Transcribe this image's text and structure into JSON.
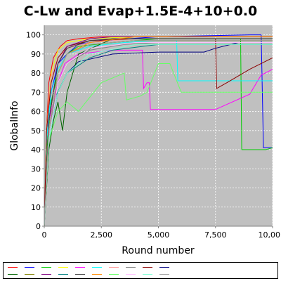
{
  "chart_data": {
    "type": "line",
    "title": "C-Lw and Evap+1.5E-4+10+0.0",
    "xlabel": "Round number",
    "ylabel": "GlobalInfo",
    "xlim": [
      0,
      10000
    ],
    "ylim": [
      0,
      105
    ],
    "x_ticks": [
      "0",
      "2,500",
      "5,000",
      "7,500",
      "10,00"
    ],
    "y_ticks": [
      "0",
      "10",
      "20",
      "30",
      "40",
      "50",
      "60",
      "70",
      "80",
      "90",
      "100"
    ],
    "grid": true,
    "plot_background": "#c0c0c0",
    "legend_placement": "bottom",
    "series": [
      {
        "color": "#ff0000",
        "x": [
          0,
          100,
          200,
          400,
          700,
          1000,
          1500,
          2500,
          4000,
          10000
        ],
        "y": [
          0,
          50,
          75,
          88,
          94,
          97,
          98,
          99,
          99,
          99
        ]
      },
      {
        "color": "#0000ff",
        "x": [
          0,
          100,
          300,
          600,
          1000,
          1500,
          2500,
          5000,
          9000,
          9500,
          9600,
          10000
        ],
        "y": [
          0,
          45,
          70,
          85,
          90,
          95,
          97,
          99,
          100,
          100,
          41,
          41
        ]
      },
      {
        "color": "#00cc00",
        "x": [
          0,
          100,
          300,
          600,
          1000,
          1500,
          3000,
          5000,
          8600,
          8650,
          9700,
          10000
        ],
        "y": [
          0,
          40,
          65,
          80,
          90,
          94,
          96,
          98,
          98,
          40,
          40,
          41
        ]
      },
      {
        "color": "#ffff00",
        "x": [
          0,
          100,
          300,
          600,
          1000,
          2000,
          4000,
          10000
        ],
        "y": [
          0,
          50,
          80,
          92,
          96,
          98,
          99,
          99
        ]
      },
      {
        "color": "#ff00ff",
        "x": [
          0,
          200,
          600,
          900,
          1500,
          3000,
          4300,
          4350,
          4500,
          4600,
          4650,
          7500,
          9000,
          9500,
          10000
        ],
        "y": [
          0,
          55,
          75,
          85,
          90,
          92,
          92,
          72,
          75,
          75,
          61,
          61,
          69,
          79,
          82
        ]
      },
      {
        "color": "#00ffff",
        "x": [
          0,
          100,
          300,
          600,
          1000,
          2000,
          3500,
          5000,
          5800,
          5850,
          10000
        ],
        "y": [
          0,
          45,
          70,
          82,
          90,
          94,
          96,
          97,
          97,
          76,
          76
        ]
      },
      {
        "color": "#ff9999",
        "x": [
          0,
          100,
          300,
          600,
          1000,
          2000,
          4000,
          10000
        ],
        "y": [
          0,
          50,
          78,
          88,
          93,
          96,
          98,
          98
        ]
      },
      {
        "color": "#808080",
        "x": [
          0,
          200,
          600,
          1000,
          2000,
          3500,
          5000,
          7500,
          10000
        ],
        "y": [
          0,
          50,
          75,
          85,
          92,
          95,
          96,
          96,
          96
        ]
      },
      {
        "color": "#8b0000",
        "x": [
          0,
          100,
          300,
          600,
          1000,
          2000,
          4000,
          7000,
          7500,
          7550,
          8000,
          9000,
          10000
        ],
        "y": [
          0,
          50,
          75,
          88,
          94,
          97,
          98,
          98,
          98,
          72,
          75,
          82,
          88
        ]
      },
      {
        "color": "#000080",
        "x": [
          0,
          200,
          600,
          1000,
          1500,
          3000,
          5000,
          7000,
          7500,
          8500,
          10000
        ],
        "y": [
          0,
          45,
          70,
          80,
          86,
          90,
          91,
          91,
          93,
          96,
          96
        ]
      },
      {
        "color": "#006400",
        "x": [
          0,
          200,
          400,
          600,
          800,
          1000,
          1500,
          3000,
          10000
        ],
        "y": [
          0,
          40,
          55,
          65,
          50,
          70,
          90,
          98,
          98
        ]
      },
      {
        "color": "#808000",
        "x": [
          0,
          200,
          600,
          1000,
          2000,
          4000,
          10000
        ],
        "y": [
          0,
          50,
          80,
          90,
          95,
          97,
          97
        ]
      },
      {
        "color": "#800080",
        "x": [
          0,
          200,
          600,
          1000,
          2000,
          3000,
          10000
        ],
        "y": [
          0,
          55,
          85,
          94,
          98,
          99,
          99
        ]
      },
      {
        "color": "#008080",
        "x": [
          0,
          200,
          500,
          1000,
          2000,
          3000,
          5000,
          10000
        ],
        "y": [
          0,
          45,
          68,
          80,
          88,
          92,
          95,
          95
        ]
      },
      {
        "color": "#404040",
        "x": [
          0,
          200,
          600,
          1000,
          2000,
          3000,
          10000
        ],
        "y": [
          0,
          55,
          85,
          93,
          97,
          98,
          98
        ]
      },
      {
        "color": "#ff8c00",
        "x": [
          0,
          200,
          600,
          1000,
          2000,
          4000,
          10000
        ],
        "y": [
          0,
          50,
          80,
          90,
          96,
          99,
          99
        ]
      },
      {
        "color": "#66ff66",
        "x": [
          0,
          200,
          600,
          1000,
          1500,
          2500,
          3500,
          3600,
          4200,
          4500,
          5000,
          5500,
          6000,
          10000
        ],
        "y": [
          0,
          45,
          60,
          65,
          60,
          75,
          80,
          66,
          68,
          70,
          85,
          85,
          70,
          70
        ]
      },
      {
        "color": "#ffc0ff",
        "x": [
          0,
          200,
          600,
          1000,
          2000,
          4000,
          10000
        ],
        "y": [
          0,
          45,
          75,
          85,
          93,
          96,
          96
        ]
      },
      {
        "color": "#7fffd4",
        "x": [
          0,
          200,
          600,
          1000,
          2000,
          4000,
          10000
        ],
        "y": [
          0,
          45,
          70,
          80,
          90,
          95,
          95
        ]
      },
      {
        "color": "#a0a0a0",
        "x": [
          0,
          200,
          600,
          1000,
          2000,
          4000,
          10000
        ],
        "y": [
          0,
          50,
          80,
          90,
          95,
          97,
          97
        ]
      }
    ]
  }
}
